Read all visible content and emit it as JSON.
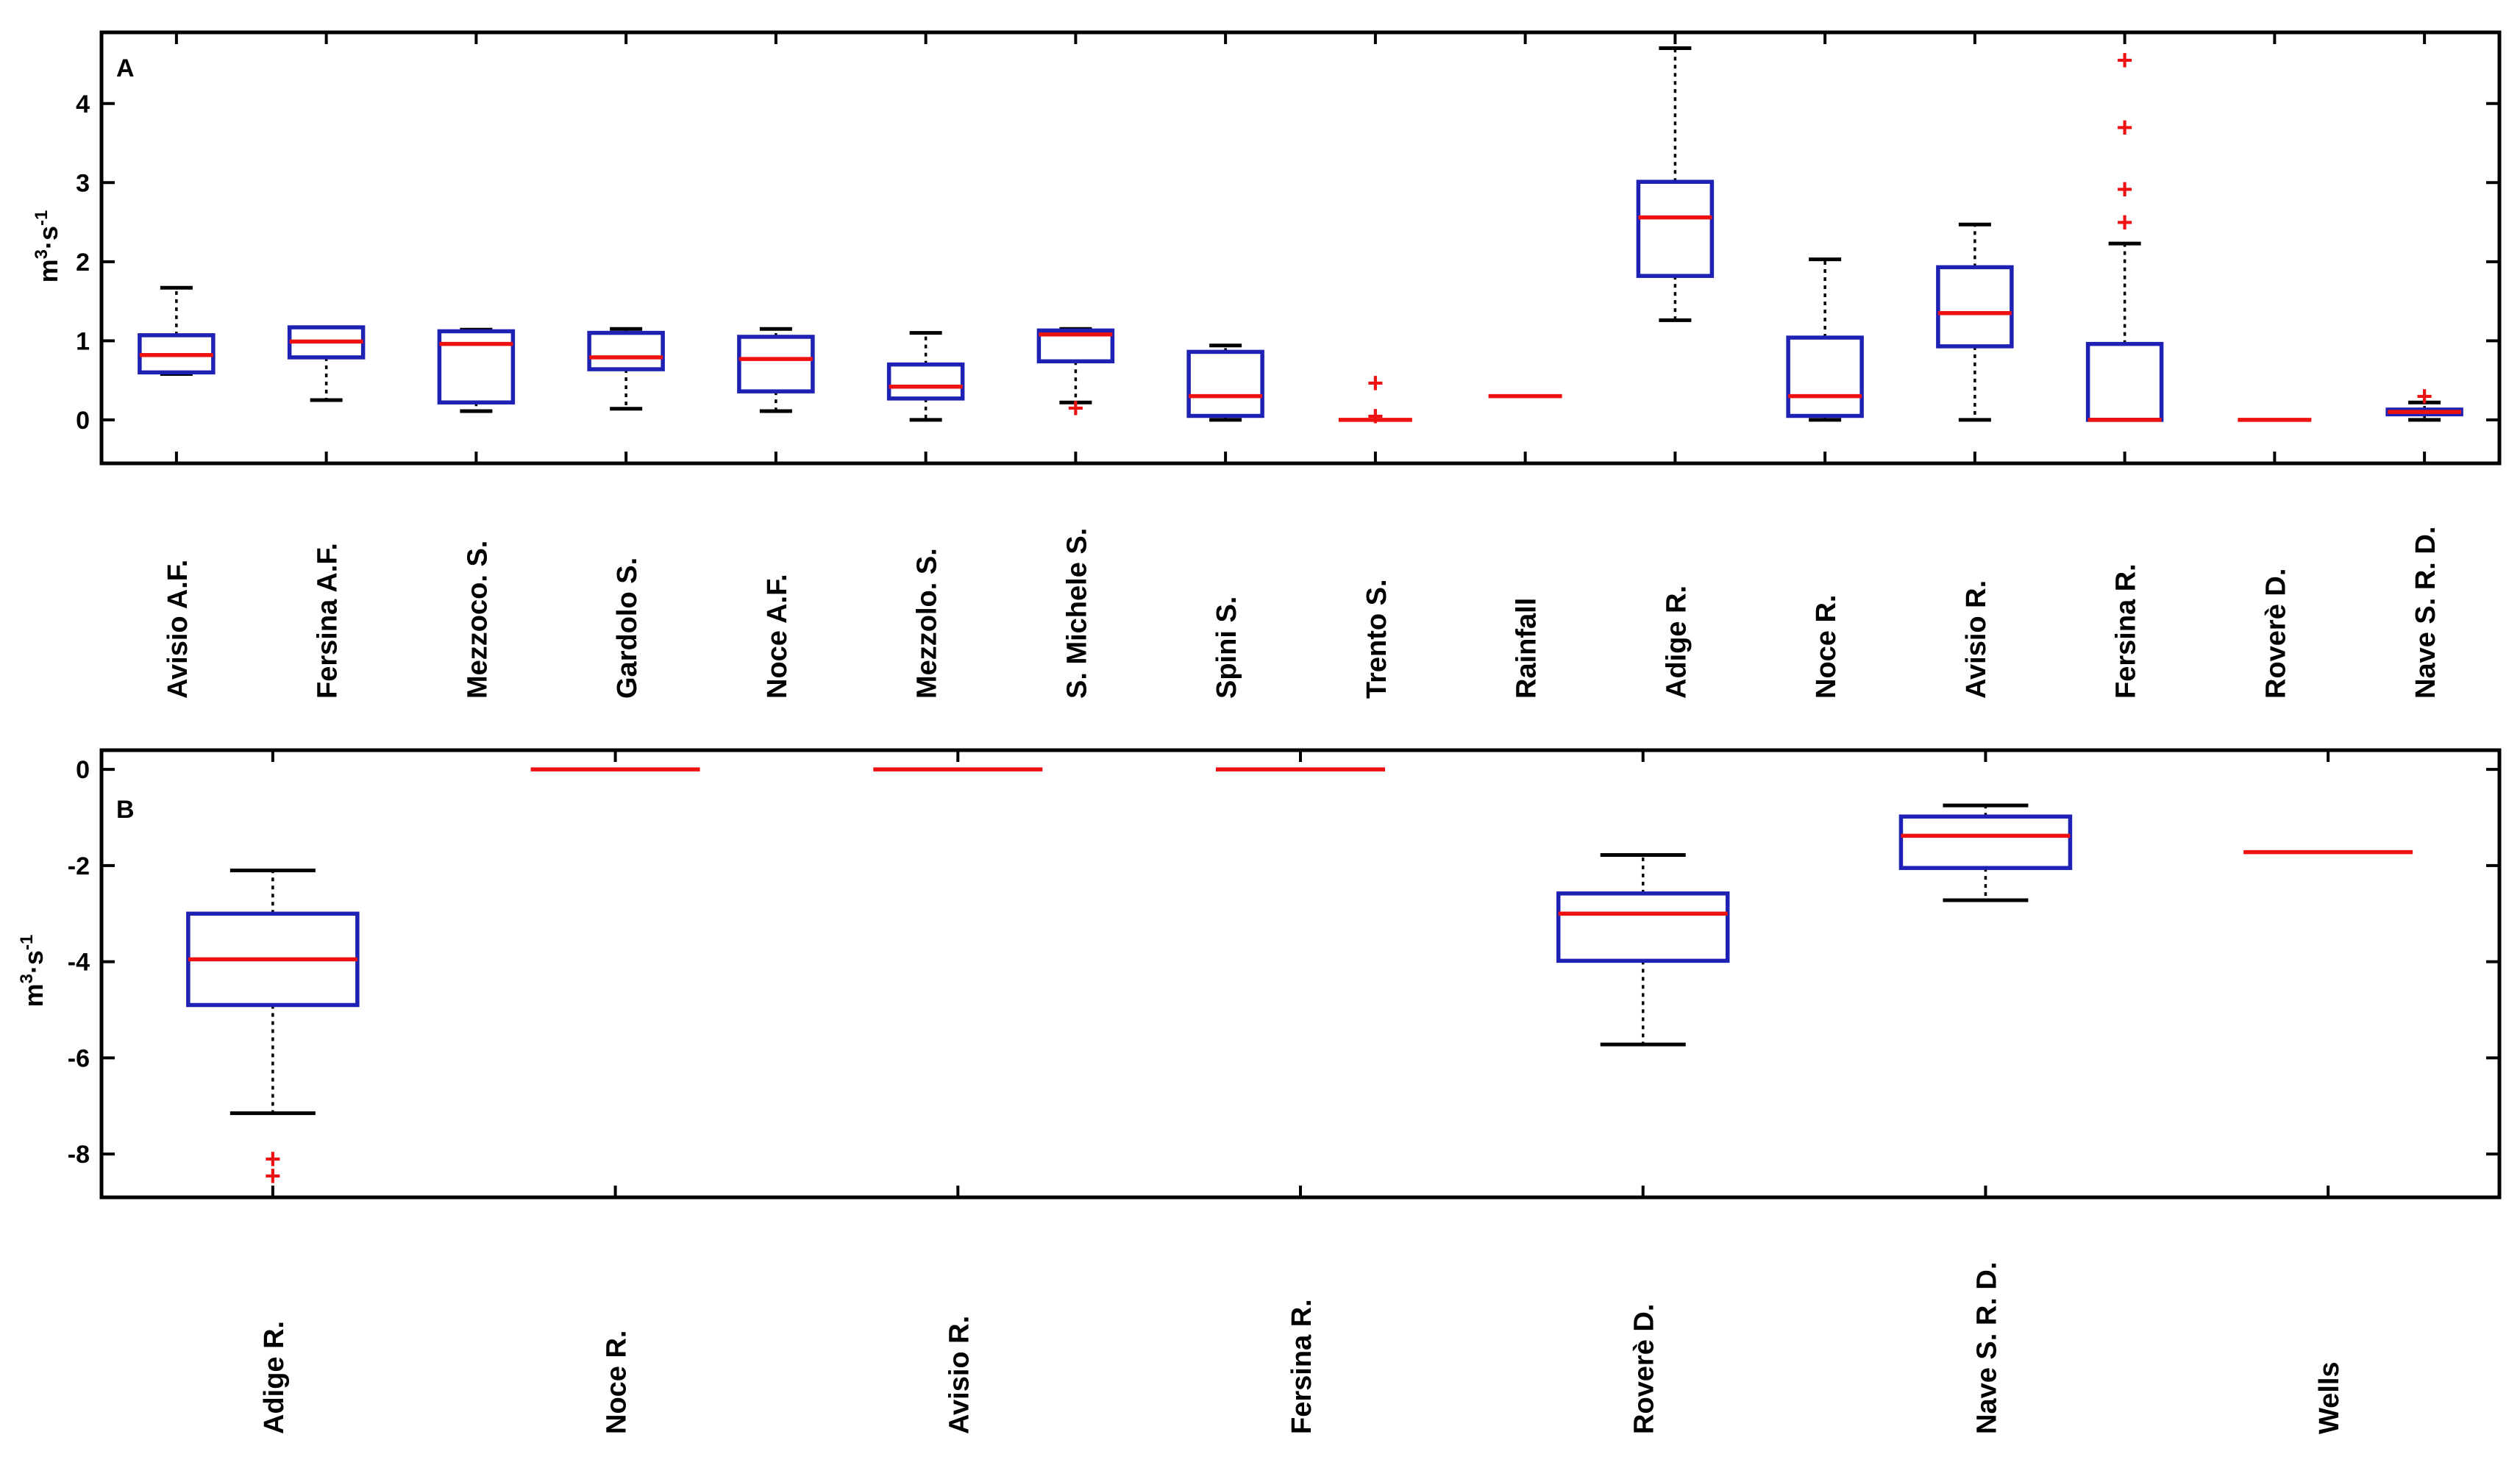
{
  "chart_data": [
    {
      "type": "boxplot",
      "panel": "A",
      "ylabel": "m",
      "ylabel_sup1": "3",
      "ylabel_mid": "·s",
      "ylabel_sup2": "-1",
      "ylim": [
        -0.55,
        4.9
      ],
      "yticks": [
        0,
        1,
        2,
        3,
        4
      ],
      "ytick_labels": [
        "0",
        "1",
        "2",
        "3",
        "4"
      ],
      "categories": [
        "Avisio A.F.",
        "Fersina A.F.",
        "Mezzoco. S.",
        "Gardolo S.",
        "Noce A.F.",
        "Mezzolo. S.",
        "S. Michele S.",
        "Spini S.",
        "Trento S.",
        "Rainfall",
        "Adige R.",
        "Noce R.",
        "Avisio R.",
        "Fersina R.",
        "Roverè D.",
        "Nave S. R. D."
      ],
      "boxes": [
        {
          "whislo": 0.58,
          "q1": 0.6,
          "med": 0.82,
          "q3": 1.07,
          "whishi": 1.67,
          "outliers": []
        },
        {
          "whislo": 0.25,
          "q1": 0.79,
          "med": 0.99,
          "q3": 1.17,
          "whishi": 1.17,
          "outliers": []
        },
        {
          "whislo": 0.11,
          "q1": 0.22,
          "med": 0.96,
          "q3": 1.12,
          "whishi": 1.14,
          "outliers": []
        },
        {
          "whislo": 0.14,
          "q1": 0.64,
          "med": 0.79,
          "q3": 1.1,
          "whishi": 1.15,
          "outliers": []
        },
        {
          "whislo": 0.11,
          "q1": 0.36,
          "med": 0.77,
          "q3": 1.05,
          "whishi": 1.15,
          "outliers": []
        },
        {
          "whislo": 0.0,
          "q1": 0.27,
          "med": 0.42,
          "q3": 0.7,
          "whishi": 1.1,
          "outliers": []
        },
        {
          "whislo": 0.22,
          "q1": 0.74,
          "med": 1.08,
          "q3": 1.13,
          "whishi": 1.15,
          "outliers": [
            0.15
          ]
        },
        {
          "whislo": 0.0,
          "q1": 0.05,
          "med": 0.3,
          "q3": 0.86,
          "whishi": 0.94,
          "outliers": []
        },
        {
          "whislo": 0.0,
          "q1": 0.0,
          "med": 0.0,
          "q3": 0.0,
          "whishi": 0.0,
          "outliers": [
            0.05,
            0.47
          ]
        },
        {
          "whislo": 0.3,
          "q1": 0.3,
          "med": 0.3,
          "q3": 0.3,
          "whishi": 0.3,
          "outliers": []
        },
        {
          "whislo": 1.26,
          "q1": 1.82,
          "med": 2.56,
          "q3": 3.01,
          "whishi": 4.7,
          "outliers": []
        },
        {
          "whislo": 0.0,
          "q1": 0.05,
          "med": 0.3,
          "q3": 1.04,
          "whishi": 2.03,
          "outliers": []
        },
        {
          "whislo": 0.0,
          "q1": 0.93,
          "med": 1.35,
          "q3": 1.93,
          "whishi": 2.47,
          "outliers": []
        },
        {
          "whislo": 0.0,
          "q1": 0.0,
          "med": 0.0,
          "q3": 0.96,
          "whishi": 2.23,
          "outliers": [
            2.5,
            2.92,
            3.7,
            4.55
          ]
        },
        {
          "whislo": 0.0,
          "q1": 0.0,
          "med": 0.0,
          "q3": 0.0,
          "whishi": 0.0,
          "outliers": []
        },
        {
          "whislo": 0.0,
          "q1": 0.07,
          "med": 0.1,
          "q3": 0.13,
          "whishi": 0.22,
          "outliers": [
            0.3
          ]
        }
      ]
    },
    {
      "type": "boxplot",
      "panel": "B",
      "ylabel": "m",
      "ylabel_sup1": "3",
      "ylabel_mid": "·s",
      "ylabel_sup2": "-1",
      "ylim": [
        -8.9,
        0.4
      ],
      "yticks": [
        0,
        -2,
        -4,
        -6,
        -8
      ],
      "ytick_labels": [
        "0",
        "-2",
        "-4",
        "-6",
        "-8"
      ],
      "categories": [
        "Adige R.",
        "Noce R.",
        "Avisio R.",
        "Fersina R.",
        "Roverè D.",
        "Nave S. R. D.",
        "Wells"
      ],
      "boxes": [
        {
          "whislo": -7.15,
          "q1": -4.9,
          "med": -3.95,
          "q3": -3.0,
          "whishi": -2.1,
          "outliers": [
            -8.1,
            -8.45
          ]
        },
        {
          "whislo": 0.0,
          "q1": 0.0,
          "med": 0.0,
          "q3": 0.0,
          "whishi": 0.0,
          "outliers": []
        },
        {
          "whislo": 0.0,
          "q1": 0.0,
          "med": 0.0,
          "q3": 0.0,
          "whishi": 0.0,
          "outliers": []
        },
        {
          "whislo": 0.0,
          "q1": 0.0,
          "med": 0.0,
          "q3": 0.0,
          "whishi": 0.0,
          "outliers": []
        },
        {
          "whislo": -5.72,
          "q1": -3.98,
          "med": -3.0,
          "q3": -2.58,
          "whishi": -1.78,
          "outliers": []
        },
        {
          "whislo": -2.72,
          "q1": -2.05,
          "med": -1.38,
          "q3": -0.98,
          "whishi": -0.75,
          "outliers": []
        },
        {
          "whislo": -1.72,
          "q1": -1.72,
          "med": -1.72,
          "q3": -1.72,
          "whishi": -1.72,
          "outliers": []
        }
      ]
    }
  ]
}
